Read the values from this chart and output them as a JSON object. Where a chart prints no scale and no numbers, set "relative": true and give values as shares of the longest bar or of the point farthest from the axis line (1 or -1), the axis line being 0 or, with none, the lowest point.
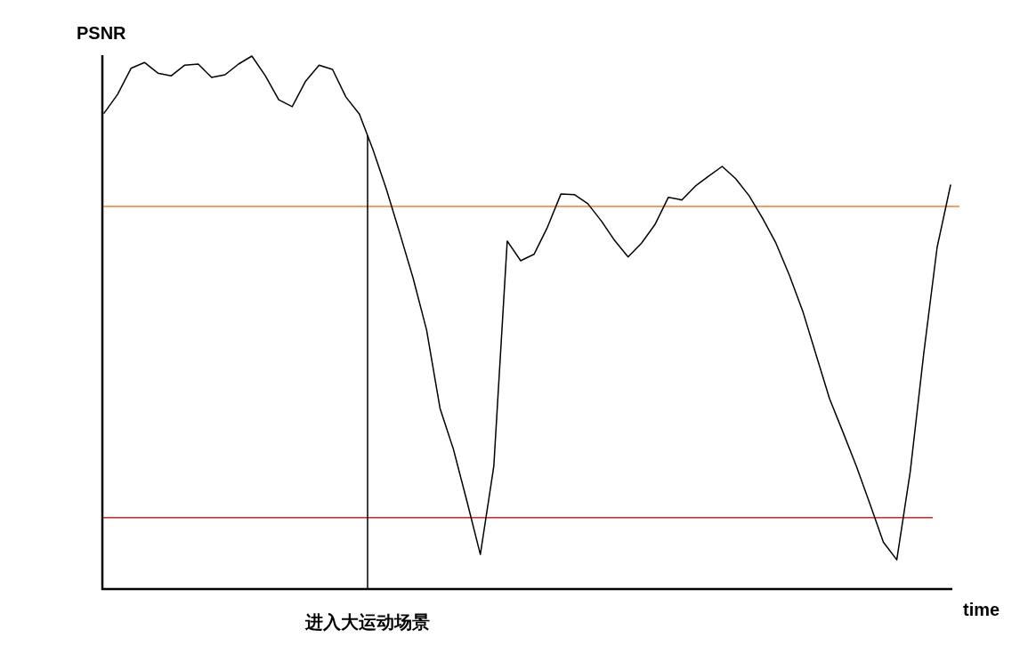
{
  "chart_data": {
    "type": "line",
    "ylabel": "PSNR",
    "xlabel": "time",
    "relative": true,
    "categories": [
      null,
      null,
      null,
      null,
      null,
      null,
      null,
      null,
      null,
      null,
      null,
      null,
      null,
      null,
      null,
      null,
      null,
      null,
      null,
      null,
      null,
      null,
      null,
      null,
      null,
      null,
      null,
      null,
      null,
      null,
      null,
      null,
      null,
      null,
      null,
      null,
      null,
      null,
      null,
      null,
      null,
      null,
      null,
      null,
      null,
      null,
      null,
      null,
      null,
      null,
      null,
      null,
      null,
      null,
      null,
      null,
      null,
      null,
      null,
      null,
      null,
      null,
      null,
      null
    ],
    "series": [
      {
        "color": "#000000",
        "values": [
          0.893,
          0.928,
          0.977,
          0.988,
          0.968,
          0.963,
          0.983,
          0.985,
          0.96,
          0.965,
          0.985,
          1,
          0.963,
          0.918,
          0.905,
          0.953,
          0.983,
          0.975,
          0.923,
          0.891,
          0.825,
          0.751,
          0.668,
          0.583,
          0.486,
          0.339,
          0.262,
          0.165,
          0.065,
          0.23,
          0.653,
          0.616,
          0.628,
          0.679,
          0.741,
          0.74,
          0.723,
          0.691,
          0.654,
          0.623,
          0.649,
          0.684,
          0.735,
          0.73,
          0.756,
          0.775,
          0.793,
          0.77,
          0.738,
          0.696,
          0.649,
          0.589,
          0.521,
          0.439,
          0.357,
          0.294,
          0.23,
          0.16,
          0.088,
          0.055,
          0.22,
          0.441,
          0.641,
          0.758
        ]
      }
    ],
    "ref_lines": [
      {
        "axis": "y",
        "value": 0.718,
        "color": "#f08030"
      },
      {
        "axis": "y",
        "value": 0.134,
        "color": "#e02020"
      }
    ],
    "annotations": [
      "进入大运动场景"
    ]
  }
}
